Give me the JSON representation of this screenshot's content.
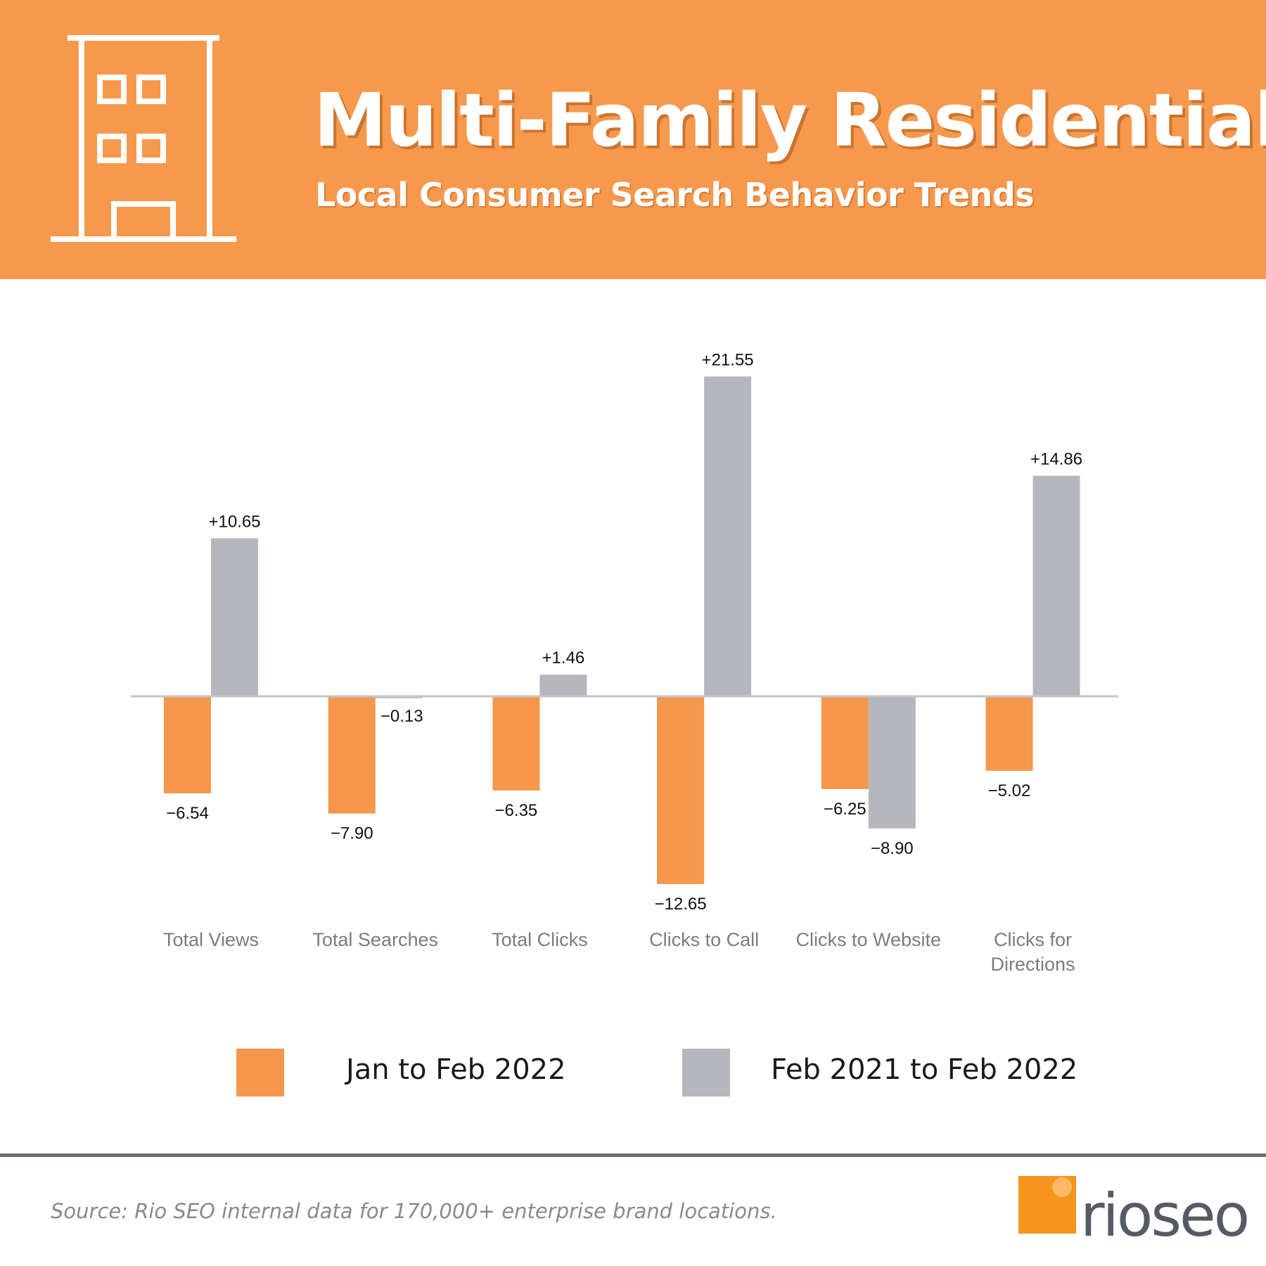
{
  "header": {
    "title": "Multi-Family Residential",
    "subtitle": "Local Consumer Search Behavior Trends"
  },
  "colors": {
    "header_bg": "#f6994d",
    "series_a": "#f6974b",
    "series_b": "#b6b7bc",
    "axis_line": "#c4c6cb"
  },
  "chart_data": {
    "type": "bar",
    "categories": [
      [
        "Total Views"
      ],
      [
        "Total Searches"
      ],
      [
        "Total Clicks"
      ],
      [
        "Clicks to Call"
      ],
      [
        "Clicks to Website"
      ],
      [
        "Clicks for",
        "Directions"
      ]
    ],
    "series": [
      {
        "name": "Jan to Feb 2022",
        "values": [
          -6.54,
          -7.9,
          -6.35,
          -12.65,
          -6.25,
          -5.02
        ],
        "labels": [
          "−6.54",
          "−7.90",
          "−6.35",
          "−12.65",
          "−6.25",
          "−5.02"
        ]
      },
      {
        "name": "Feb 2021 to Feb 2022",
        "values": [
          10.65,
          -0.13,
          1.46,
          21.55,
          -8.9,
          14.86
        ],
        "labels": [
          "+10.65",
          "−0.13",
          "+1.46",
          "+21.55",
          "−8.90",
          "+14.86"
        ]
      }
    ],
    "title": "Multi-Family Residential",
    "xlabel": "",
    "ylabel": "",
    "ylim": [
      -13,
      22
    ],
    "grid": false,
    "legend": "bottom"
  },
  "legend": {
    "series_a_label": "Jan to Feb 2022",
    "series_b_label": "Feb 2021 to Feb 2022"
  },
  "footer": {
    "source": "Source: Rio SEO internal data for 170,000+ enterprise brand locations.",
    "logo_text": "rioseo"
  }
}
